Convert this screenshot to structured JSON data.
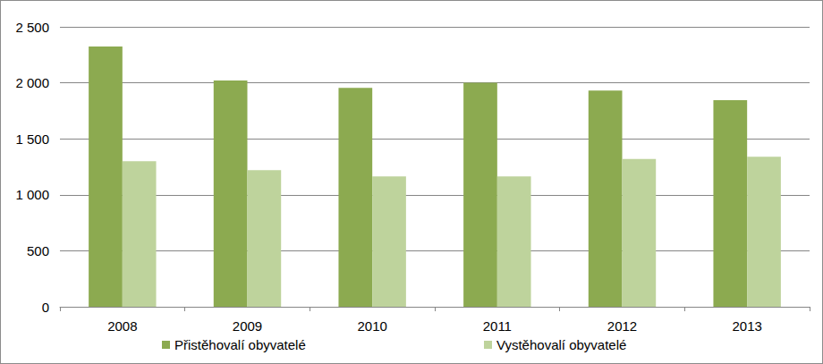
{
  "chart_data": {
    "type": "bar",
    "categories": [
      "2008",
      "2009",
      "2010",
      "2011",
      "2012",
      "2013"
    ],
    "series": [
      {
        "name": "Přistěhovalí obyvatelé",
        "color": "#8caa50",
        "values": [
          2325,
          2020,
          1955,
          2000,
          1930,
          1845
        ]
      },
      {
        "name": "Vystěhovalí obyvatelé",
        "color": "#bed39c",
        "values": [
          1300,
          1220,
          1165,
          1165,
          1320,
          1340
        ]
      }
    ],
    "ylim": [
      0,
      2500
    ],
    "yticks": [
      0,
      500,
      {
        "value": 1000,
        "label": "1 000"
      },
      {
        "value": 1500,
        "label": "1 500"
      },
      {
        "value": 2000,
        "label": "2 000"
      },
      {
        "value": 2500,
        "label": "2 500"
      }
    ],
    "grid": true,
    "legend": "bottom"
  }
}
